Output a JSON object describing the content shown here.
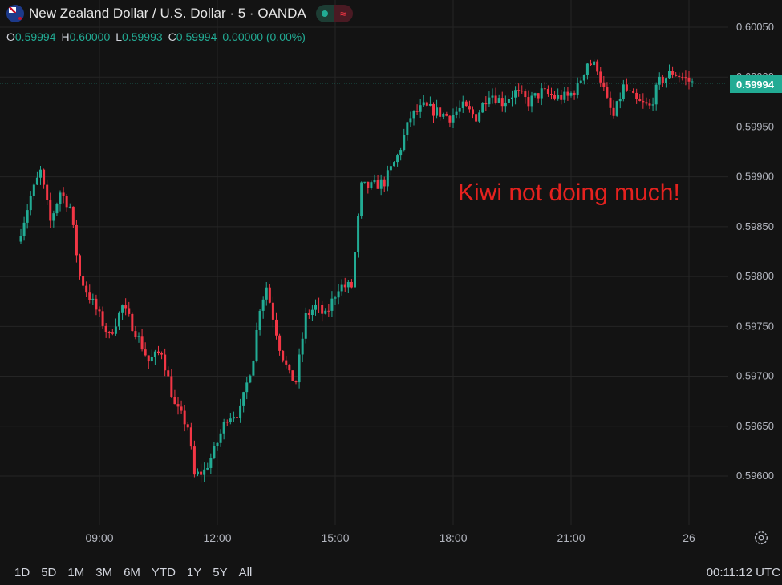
{
  "header": {
    "title": "New Zealand Dollar / U.S. Dollar · 5 · OANDA",
    "wave_symbol": "≈"
  },
  "ohlc": {
    "o_label": "O",
    "o": "0.59994",
    "h_label": "H",
    "h": "0.60000",
    "l_label": "L",
    "l": "0.59993",
    "c_label": "C",
    "c": "0.59994",
    "change": "0.00000 (0.00%)"
  },
  "annotation": "Kiwi not doing much!",
  "last_price_label": "0.59994",
  "ranges": [
    "1D",
    "5D",
    "1M",
    "3M",
    "6M",
    "YTD",
    "1Y",
    "5Y",
    "All"
  ],
  "clock": "00:11:12 UTC",
  "colors": {
    "up": "#22ab94",
    "down": "#f23645",
    "annotation": "#e5221f",
    "background": "#131313"
  },
  "icons": {
    "settings": "settings-icon",
    "flag": "nz-flag-icon"
  },
  "chart_data": {
    "type": "candlestick",
    "x_ticks": [
      "09:00",
      "12:00",
      "15:00",
      "18:00",
      "21:00",
      "26"
    ],
    "y_ticks": [
      "0.59600",
      "0.59650",
      "0.59700",
      "0.59750",
      "0.59800",
      "0.59850",
      "0.59900",
      "0.59950",
      "0.60000",
      "0.60050"
    ],
    "ylim": [
      0.59554,
      0.60072
    ],
    "last_price": 0.59994,
    "price_path": [
      {
        "t": "07:00",
        "p": 0.59835
      },
      {
        "t": "07:20",
        "p": 0.5988
      },
      {
        "t": "07:35",
        "p": 0.59905
      },
      {
        "t": "07:50",
        "p": 0.59855
      },
      {
        "t": "08:05",
        "p": 0.59885
      },
      {
        "t": "08:20",
        "p": 0.5987
      },
      {
        "t": "08:35",
        "p": 0.598
      },
      {
        "t": "08:50",
        "p": 0.5978
      },
      {
        "t": "09:05",
        "p": 0.5976
      },
      {
        "t": "09:20",
        "p": 0.5974
      },
      {
        "t": "09:40",
        "p": 0.5977
      },
      {
        "t": "10:00",
        "p": 0.59745
      },
      {
        "t": "10:20",
        "p": 0.59715
      },
      {
        "t": "10:40",
        "p": 0.59725
      },
      {
        "t": "11:00",
        "p": 0.5967
      },
      {
        "t": "11:20",
        "p": 0.5965
      },
      {
        "t": "11:30",
        "p": 0.596
      },
      {
        "t": "11:45",
        "p": 0.59605
      },
      {
        "t": "12:00",
        "p": 0.59625
      },
      {
        "t": "12:20",
        "p": 0.5966
      },
      {
        "t": "12:40",
        "p": 0.59665
      },
      {
        "t": "13:00",
        "p": 0.5972
      },
      {
        "t": "13:10",
        "p": 0.5977
      },
      {
        "t": "13:20",
        "p": 0.5979
      },
      {
        "t": "13:40",
        "p": 0.5973
      },
      {
        "t": "13:55",
        "p": 0.597
      },
      {
        "t": "14:05",
        "p": 0.59695
      },
      {
        "t": "14:20",
        "p": 0.5976
      },
      {
        "t": "14:35",
        "p": 0.5977
      },
      {
        "t": "14:50",
        "p": 0.5976
      },
      {
        "t": "15:10",
        "p": 0.5979
      },
      {
        "t": "15:30",
        "p": 0.5979
      },
      {
        "t": "15:45",
        "p": 0.5989
      },
      {
        "t": "16:00",
        "p": 0.5989
      },
      {
        "t": "16:20",
        "p": 0.59895
      },
      {
        "t": "16:40",
        "p": 0.5992
      },
      {
        "t": "17:00",
        "p": 0.5996
      },
      {
        "t": "17:20",
        "p": 0.5997
      },
      {
        "t": "17:40",
        "p": 0.59965
      },
      {
        "t": "18:00",
        "p": 0.5996
      },
      {
        "t": "18:20",
        "p": 0.5997
      },
      {
        "t": "18:40",
        "p": 0.5996
      },
      {
        "t": "19:00",
        "p": 0.59985
      },
      {
        "t": "19:20",
        "p": 0.59975
      },
      {
        "t": "19:40",
        "p": 0.59985
      },
      {
        "t": "20:00",
        "p": 0.59975
      },
      {
        "t": "20:20",
        "p": 0.59985
      },
      {
        "t": "20:40",
        "p": 0.5998
      },
      {
        "t": "21:00",
        "p": 0.5998
      },
      {
        "t": "21:15",
        "p": 0.5999
      },
      {
        "t": "21:30",
        "p": 0.60015
      },
      {
        "t": "21:45",
        "p": 0.6001
      },
      {
        "t": "22:00",
        "p": 0.59975
      },
      {
        "t": "22:10",
        "p": 0.5996
      },
      {
        "t": "22:25",
        "p": 0.5999
      },
      {
        "t": "22:45",
        "p": 0.59975
      },
      {
        "t": "23:05",
        "p": 0.5997
      },
      {
        "t": "23:20",
        "p": 0.59995
      },
      {
        "t": "23:40",
        "p": 0.60005
      },
      {
        "t": "23:55",
        "p": 0.6
      },
      {
        "t": "00:10",
        "p": 0.59994
      }
    ],
    "annotation": "Kiwi not doing much!"
  }
}
